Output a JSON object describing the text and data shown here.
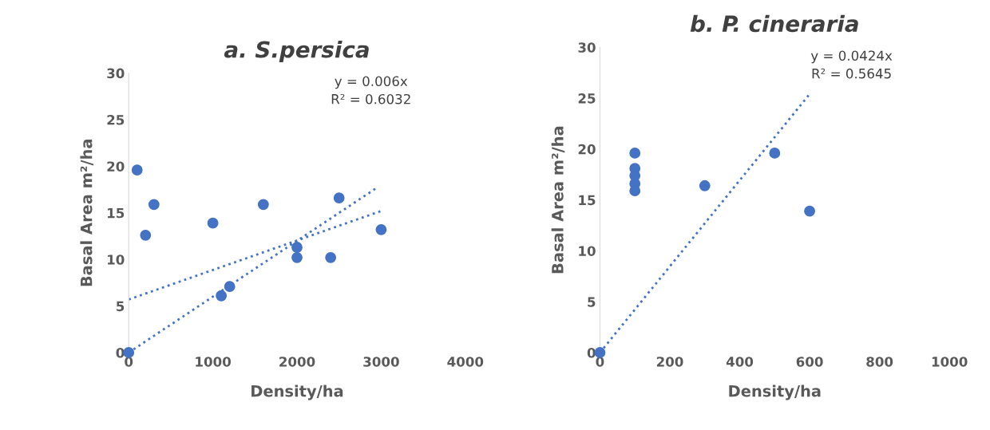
{
  "chart_data": [
    {
      "type": "scatter",
      "title": "a. S.persica",
      "xlabel": "Density/ha",
      "ylabel": "Basal Area m²/ha",
      "xlim": [
        0,
        4000
      ],
      "xticks": [
        0,
        1000,
        2000,
        3000,
        4000
      ],
      "ylim": [
        0,
        30
      ],
      "yticks": [
        0,
        5,
        10,
        15,
        20,
        25,
        30
      ],
      "grid": false,
      "legend": false,
      "annotations": [
        "y = 0.006x\nR² = 0.6032"
      ],
      "series": [
        {
          "marker": "circle",
          "color": "#4472c4",
          "x": [
            0,
            100,
            200,
            300,
            1000,
            1100,
            1200,
            1600,
            2000,
            2000,
            2400,
            2500,
            3000
          ],
          "values": [
            0,
            19.6,
            12.6,
            15.9,
            13.9,
            6.1,
            7.1,
            15.9,
            11.3,
            10.2,
            10.2,
            16.6,
            13.2
          ]
        },
        {
          "type": "line",
          "line_style": "dotted",
          "color": "#4472c4",
          "x": [
            0,
            2950
          ],
          "values": [
            0,
            17.7
          ]
        },
        {
          "type": "line",
          "line_style": "dotted",
          "color": "#4472c4",
          "x": [
            0,
            3000
          ],
          "values": [
            5.7,
            15.2
          ]
        }
      ]
    },
    {
      "type": "scatter",
      "title": "b. P. cineraria",
      "xlabel": "Density/ha",
      "ylabel": "Basal Area m²/ha",
      "xlim": [
        0,
        1000
      ],
      "xticks": [
        0,
        200,
        400,
        600,
        800,
        1000
      ],
      "ylim": [
        0,
        30
      ],
      "yticks": [
        0,
        5,
        10,
        15,
        20,
        25,
        30
      ],
      "grid": false,
      "legend": false,
      "annotations": [
        "y = 0.0424x\nR² = 0.5645"
      ],
      "series": [
        {
          "marker": "circle",
          "color": "#4472c4",
          "x": [
            0,
            100,
            100,
            100,
            100,
            100,
            300,
            500,
            600
          ],
          "values": [
            0,
            19.6,
            18.1,
            17.4,
            16.6,
            15.9,
            16.4,
            19.6,
            13.9
          ]
        },
        {
          "type": "line",
          "line_style": "dotted",
          "color": "#4472c4",
          "x": [
            0,
            600
          ],
          "values": [
            0,
            25.4
          ]
        }
      ]
    }
  ]
}
